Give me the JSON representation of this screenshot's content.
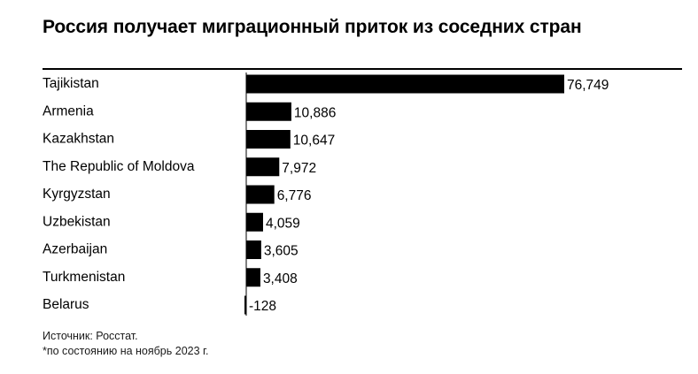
{
  "title": "Россия получает миграционный приток из соседних стран",
  "source": "Источник: Росстат.",
  "note": "*по состоянию на ноябрь 2023 г.",
  "colors": {
    "bar": "#000000",
    "text": "#000000",
    "background": "#ffffff"
  },
  "chart_data": {
    "type": "bar",
    "orientation": "horizontal",
    "categories": [
      "Tajikistan",
      "Armenia",
      "Kazakhstan",
      "The Republic of Moldova",
      "Kyrgyzstan",
      "Uzbekistan",
      "Azerbaijan",
      "Turkmenistan",
      "Belarus"
    ],
    "values": [
      76749,
      10886,
      10647,
      7972,
      6776,
      4059,
      3605,
      3408,
      -128
    ],
    "value_labels": [
      "76,749",
      "10,886",
      "10,647",
      "7,972",
      "6,776",
      "4,059",
      "3,605",
      "3,408",
      "-128"
    ],
    "title": "Россия получает миграционный приток из соседних стран",
    "xlabel": "",
    "ylabel": "",
    "grid": false
  }
}
